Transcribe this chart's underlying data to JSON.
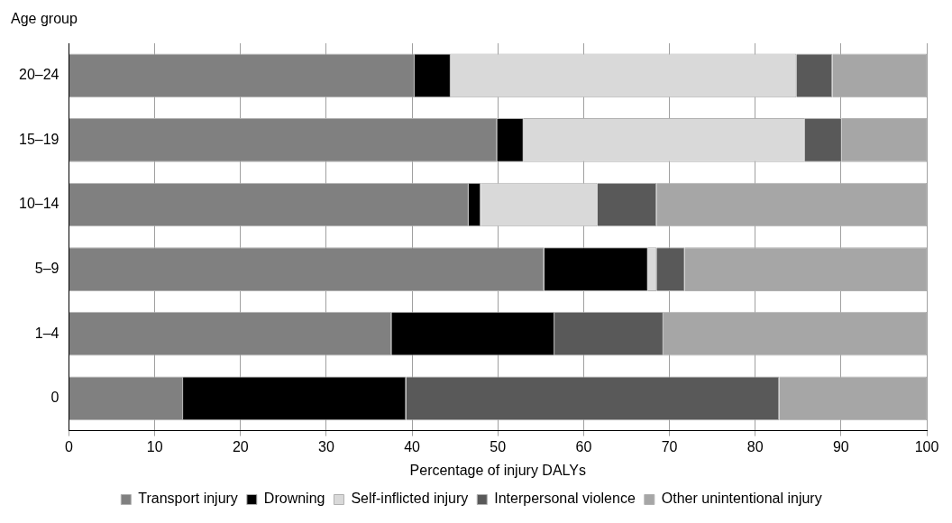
{
  "chart_data": {
    "type": "bar",
    "orientation": "horizontal",
    "stacked": true,
    "ylabel": "Age group",
    "xlabel": "Percentage of injury DALYs",
    "categories": [
      "20–24",
      "15–19",
      "10–14",
      "5–9",
      "1–4",
      "0"
    ],
    "series": [
      {
        "name": "Transport injury",
        "color": "#808080",
        "values": [
          40.3,
          49.9,
          46.6,
          55.4,
          37.6,
          13.3
        ]
      },
      {
        "name": "Drowning",
        "color": "#000000",
        "values": [
          4.2,
          3.1,
          1.4,
          12.1,
          19.0,
          26.0
        ]
      },
      {
        "name": "Self-inflicted injury",
        "color": "#d9d9d9",
        "values": [
          40.3,
          32.8,
          13.6,
          1.0,
          null,
          0
        ]
      },
      {
        "name": "Interpersonal violence",
        "color": "#595959",
        "values": [
          4.2,
          4.3,
          6.9,
          3.3,
          12.7,
          43.5
        ]
      },
      {
        "name": "Other unintentional injury",
        "color": "#a6a6a6",
        "values": [
          11.0,
          9.9,
          31.5,
          28.2,
          30.7,
          17.2
        ]
      }
    ],
    "xlim": [
      0,
      100
    ],
    "xticks": [
      0,
      10,
      20,
      30,
      40,
      50,
      60,
      70,
      80,
      90,
      100
    ],
    "grid": "x",
    "legend": "bottom"
  }
}
